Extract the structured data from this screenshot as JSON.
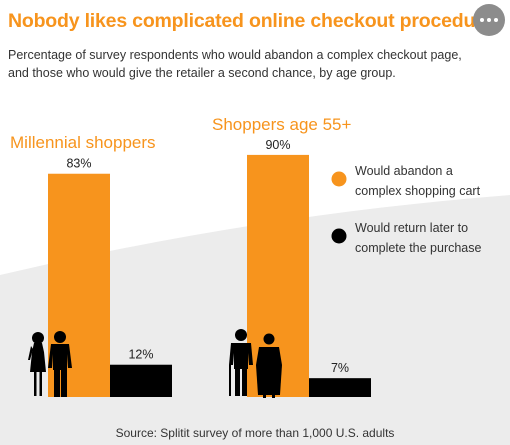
{
  "header": {
    "title": "Nobody likes complicated online checkout procedures",
    "subtitle": "Percentage of survey respondents who would abandon a complex checkout page, and those who would give the retailer a second chance, by age group."
  },
  "source": "Source: Splitit survey of more than 1,000 U.S. adults",
  "colors": {
    "accent": "#f7941d",
    "return": "#000000",
    "background_band": "#ececec"
  },
  "icons": [
    "more-options-icon",
    "young-couple-icon",
    "senior-couple-icon"
  ],
  "chart_data": {
    "type": "bar",
    "ylim": [
      0,
      100
    ],
    "groups": [
      {
        "name": "Millennial shoppers",
        "values": [
          83,
          12
        ],
        "labels": [
          "83%",
          "12%"
        ]
      },
      {
        "name": "Shoppers age 55+",
        "values": [
          90,
          7
        ],
        "labels": [
          "90%",
          "7%"
        ]
      }
    ],
    "series": [
      {
        "name": "Would abandon a complex shopping cart",
        "lines": [
          "Would abandon a",
          "complex shopping cart"
        ],
        "color": "#f7941d"
      },
      {
        "name": "Would return later to complete the purchase",
        "lines": [
          "Would return later to",
          "complete the purchase"
        ],
        "color": "#000000"
      }
    ],
    "legend_position": "right",
    "grid": false
  }
}
